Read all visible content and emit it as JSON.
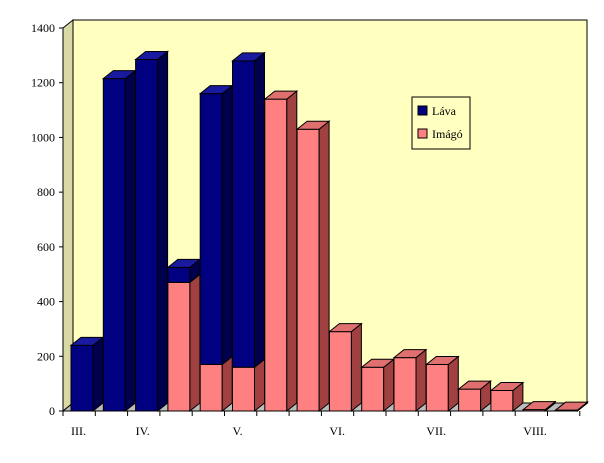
{
  "colors": {
    "plot_background": "#ffffc0",
    "lava_front": "#000080",
    "lava_side": "#00004d",
    "lava_top": "#1a1aa0",
    "imago_front": "#ff8080",
    "imago_side": "#a04040",
    "imago_top": "#e07070",
    "wall_side": "#d9d9a6",
    "floor": "#bdbdbd"
  },
  "chart_data": {
    "type": "bar",
    "stacked": true,
    "three_d": true,
    "title": "",
    "xlabel": "",
    "ylabel": "",
    "ylim": [
      0,
      1400
    ],
    "y_ticks": [
      0,
      200,
      400,
      600,
      800,
      1000,
      1200,
      1400
    ],
    "x_tick_labels": [
      {
        "label": "III.",
        "bar_index": 0
      },
      {
        "label": "IV.",
        "bar_index": 2
      },
      {
        "label": "V.",
        "bar_index": 5
      },
      {
        "label": "VI.",
        "bar_index": 8
      },
      {
        "label": "VII.",
        "bar_index": 11
      },
      {
        "label": "VIII.",
        "bar_index": 14
      }
    ],
    "bar_count": 16,
    "series": [
      {
        "name": "Imágó",
        "color_key": "imago",
        "values": [
          0,
          0,
          0,
          470,
          170,
          160,
          1140,
          1030,
          290,
          160,
          195,
          170,
          80,
          75,
          5,
          3
        ]
      },
      {
        "name": "Láva",
        "color_key": "lava",
        "values": [
          240,
          1215,
          1285,
          55,
          990,
          1120,
          0,
          0,
          0,
          0,
          0,
          0,
          0,
          0,
          0,
          0
        ]
      }
    ],
    "legend": {
      "position": "right",
      "entries": [
        {
          "label": "Láva",
          "color_key": "lava"
        },
        {
          "label": "Imágó",
          "color_key": "imago"
        }
      ]
    },
    "grid": false
  }
}
